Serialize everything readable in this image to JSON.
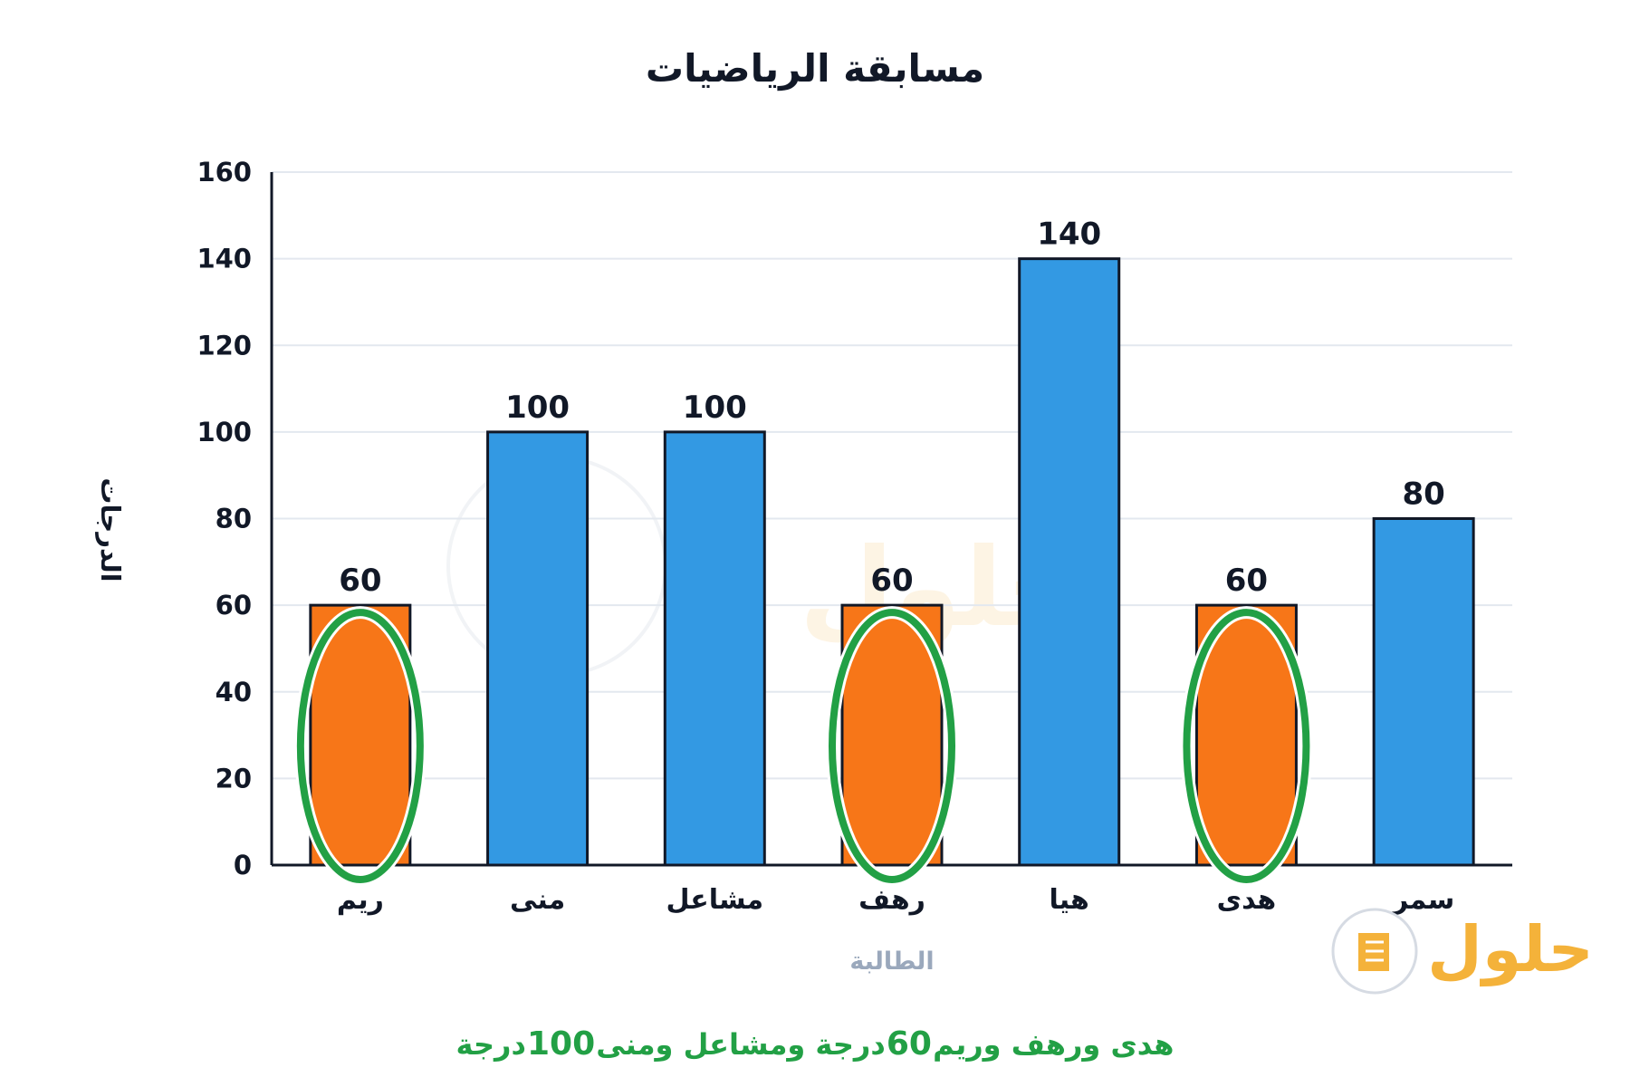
{
  "chart_data": {
    "type": "bar",
    "title": "مسابقة الرياضيات",
    "xlabel": "الطالبة",
    "ylabel": "الدرجات",
    "categories": [
      "ريم",
      "منى",
      "مشاعل",
      "رهف",
      "هيا",
      "هدى",
      "سمر"
    ],
    "values": [
      60,
      100,
      100,
      60,
      140,
      60,
      80
    ],
    "highlighted": [
      true,
      false,
      false,
      true,
      false,
      true,
      false
    ],
    "ylim": [
      0,
      160
    ],
    "yticks": [
      0,
      20,
      40,
      60,
      80,
      100,
      120,
      140,
      160
    ],
    "grid": true,
    "colors": {
      "bar": "#3399e3",
      "highlight": "#f77618",
      "ellipse": "#22a045",
      "bar_stroke": "#111827",
      "grid": "#e3e8ef",
      "caption": "#22a045"
    }
  },
  "caption": {
    "part1": "هدى ورهف وريم",
    "num1": "60",
    "part2": "درجة ومشاعل ومنى",
    "num2": "100",
    "part3": "درجة"
  },
  "watermark": {
    "text": "حلول"
  }
}
